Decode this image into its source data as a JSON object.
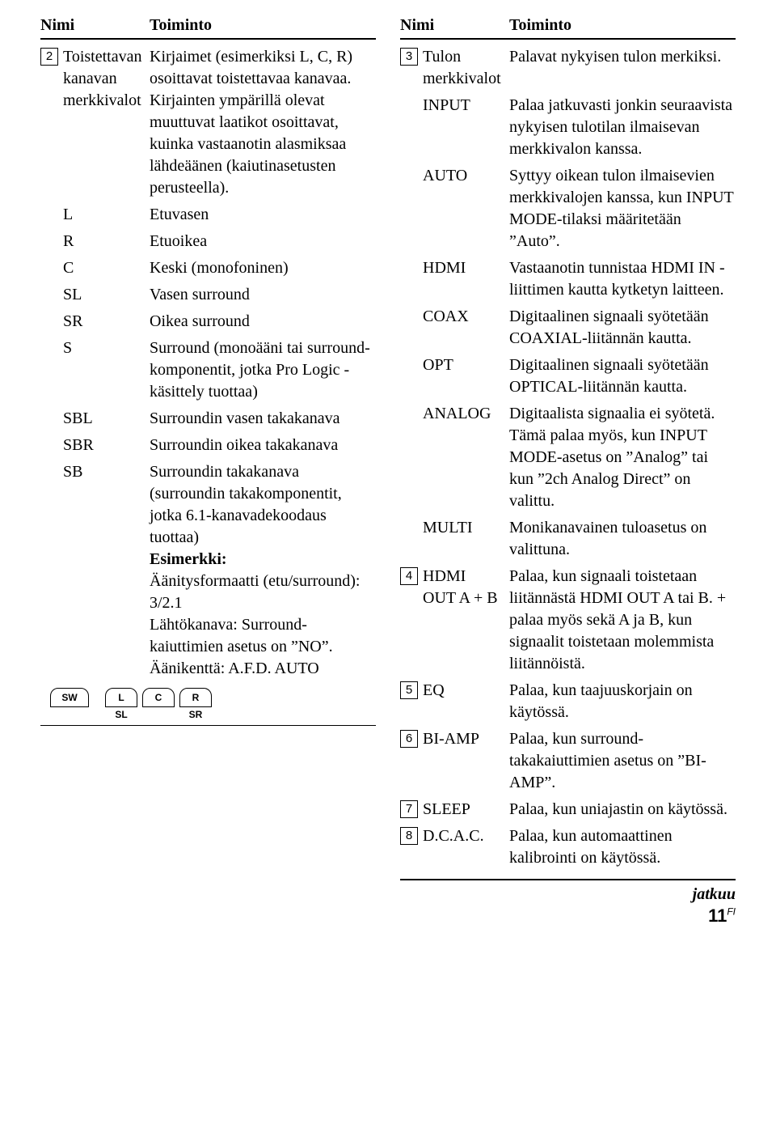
{
  "left": {
    "headers": {
      "name": "Nimi",
      "func": "Toiminto"
    },
    "rows": [
      {
        "num": "2",
        "name": "Toistettavan kanavan merkkivalot",
        "func": "Kirjaimet (esimerkiksi L, C, R) osoittavat toistettavaa kanavaa. Kirjainten ympärillä olevat muuttuvat laatikot osoittavat, kuinka vastaanotin alasmiksaa lähdeäänen (kaiutinasetusten perusteella)."
      },
      {
        "name": "L",
        "func": "Etuvasen"
      },
      {
        "name": "R",
        "func": "Etuoikea"
      },
      {
        "name": "C",
        "func": "Keski (monofoninen)"
      },
      {
        "name": "SL",
        "func": "Vasen surround"
      },
      {
        "name": "SR",
        "func": "Oikea surround"
      },
      {
        "name": "S",
        "func": "Surround (monoääni tai surround-komponentit, jotka Pro Logic -käsittely tuottaa)"
      },
      {
        "name": "SBL",
        "func": "Surroundin vasen takakanava"
      },
      {
        "name": "SBR",
        "func": "Surroundin oikea takakanava"
      },
      {
        "name": "SB",
        "func_html": "Surroundin takakanava (surroundin takakomponentit, jotka 6.1-kanavadekoodaus tuottaa)<br><span class=\"bold\">Esimerkki:</span><br>Äänitysformaatti (etu/surround): 3/2.1<br>Lähtökanava: Surround-kaiuttimien asetus on ”NO”.<br>Äänikenttä: A.F.D. AUTO"
      }
    ],
    "speakers": {
      "top": [
        "SW",
        "L",
        "C",
        "R"
      ],
      "bottom_labels": [
        "SL",
        "SR"
      ]
    }
  },
  "right": {
    "headers": {
      "name": "Nimi",
      "func": "Toiminto"
    },
    "rows": [
      {
        "num": "3",
        "name": "Tulon merkkivalot",
        "func": "Palavat nykyisen tulon merkiksi."
      },
      {
        "name": "INPUT",
        "func": "Palaa jatkuvasti jonkin seuraavista nykyisen tulotilan ilmaisevan merkkivalon kanssa."
      },
      {
        "name": "AUTO",
        "func": "Syttyy oikean tulon ilmaisevien merkkivalojen kanssa, kun INPUT MODE-tilaksi määritetään ”Auto”."
      },
      {
        "name": "HDMI",
        "func": "Vastaanotin tunnistaa HDMI IN -liittimen kautta kytketyn laitteen."
      },
      {
        "name": "COAX",
        "func": "Digitaalinen signaali syötetään COAXIAL-liitännän kautta."
      },
      {
        "name": "OPT",
        "func": "Digitaalinen signaali syötetään OPTICAL-liitännän kautta."
      },
      {
        "name": "ANALOG",
        "func": "Digitaalista signaalia ei syötetä. Tämä palaa myös, kun INPUT MODE-asetus on ”Analog” tai kun ”2ch Analog Direct” on valittu."
      },
      {
        "name": "MULTI",
        "func": "Monikanavainen tuloasetus on valittuna."
      },
      {
        "num": "4",
        "name": "HDMI OUT A + B",
        "func": "Palaa, kun signaali toistetaan liitännästä HDMI OUT A tai B. + palaa myös sekä A ja B, kun signaalit toistetaan molemmista liitännöistä."
      },
      {
        "num": "5",
        "name": "EQ",
        "func": "Palaa, kun taajuuskorjain on käytössä."
      },
      {
        "num": "6",
        "name": "BI-AMP",
        "func": "Palaa, kun surround-takakaiuttimien asetus on ”BI-AMP”."
      },
      {
        "num": "7",
        "name": "SLEEP",
        "func": "Palaa, kun uniajastin on käytössä."
      },
      {
        "num": "8",
        "name": "D.C.A.C.",
        "func": "Palaa, kun automaattinen kalibrointi on käytössä."
      }
    ]
  },
  "footer": {
    "continue": "jatkuu",
    "page": "11",
    "lang": "FI"
  }
}
